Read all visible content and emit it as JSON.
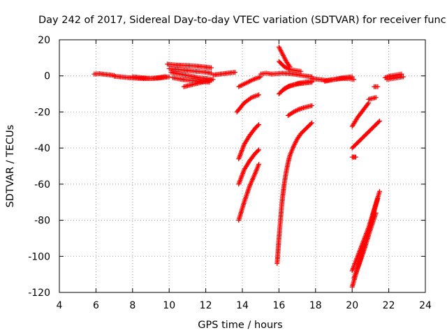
{
  "chart_data": {
    "type": "scatter",
    "title": "Day 242 of 2017, Sidereal Day-to-day VTEC variation (SDTVAR) for receiver func",
    "xlabel": "GPS time / hours",
    "ylabel": "SDTVAR / TECUs",
    "xlim": [
      4,
      24
    ],
    "ylim": [
      -120,
      20
    ],
    "xticks": [
      4,
      6,
      8,
      10,
      12,
      14,
      16,
      18,
      20,
      22,
      24
    ],
    "yticks": [
      -120,
      -100,
      -80,
      -60,
      -40,
      -20,
      0,
      20
    ],
    "grid": true,
    "marker": "+",
    "color": "#ff0000",
    "tracks": [
      {
        "name": "t01",
        "x": [
          5.9,
          6.2,
          6.5,
          6.8,
          7.0
        ],
        "y": [
          1.0,
          1.2,
          0.8,
          0.5,
          0.2
        ]
      },
      {
        "name": "t02",
        "x": [
          7.0,
          7.4,
          7.8,
          8.2,
          8.6,
          9.0,
          9.4,
          9.8
        ],
        "y": [
          -0.2,
          -0.6,
          -1.0,
          -1.3,
          -1.5,
          -1.4,
          -1.0,
          -0.4
        ]
      },
      {
        "name": "t03",
        "x": [
          8.0,
          8.5,
          9.0,
          9.5,
          10.0
        ],
        "y": [
          -0.5,
          -1.0,
          -1.5,
          -1.2,
          -0.5
        ]
      },
      {
        "name": "t04",
        "x": [
          9.9,
          10.4,
          10.9,
          11.4,
          11.9,
          12.3
        ],
        "y": [
          6.5,
          6.0,
          5.8,
          5.5,
          5.0,
          4.5
        ]
      },
      {
        "name": "t05",
        "x": [
          10.0,
          10.5,
          11.0,
          11.5,
          12.0,
          12.3
        ],
        "y": [
          4.0,
          3.5,
          3.0,
          2.5,
          2.0,
          1.5
        ]
      },
      {
        "name": "t06",
        "x": [
          10.1,
          10.6,
          11.1,
          11.6,
          12.1,
          12.4
        ],
        "y": [
          2.0,
          1.0,
          0.0,
          -1.0,
          -1.5,
          -2.0
        ]
      },
      {
        "name": "t07",
        "x": [
          10.2,
          10.7,
          11.2,
          11.7,
          12.2
        ],
        "y": [
          -1.0,
          -2.0,
          -2.5,
          -3.0,
          -3.5
        ]
      },
      {
        "name": "t08",
        "x": [
          10.8,
          11.2,
          11.6,
          12.0,
          12.3
        ],
        "y": [
          -6.0,
          -5.0,
          -4.0,
          -3.0,
          -2.5
        ]
      },
      {
        "name": "t09",
        "x": [
          12.4,
          12.8,
          13.2,
          13.6
        ],
        "y": [
          0.5,
          1.0,
          1.5,
          2.0
        ]
      },
      {
        "name": "t10",
        "x": [
          13.8,
          14.2,
          14.6,
          15.0
        ],
        "y": [
          -6.0,
          -4.0,
          -2.0,
          -0.5
        ]
      },
      {
        "name": "t11",
        "x": [
          13.7,
          14.1,
          14.5,
          14.9
        ],
        "y": [
          -20.0,
          -15.0,
          -12.0,
          -10.5
        ]
      },
      {
        "name": "t12",
        "x": [
          13.8,
          14.1,
          14.4,
          14.7,
          14.9
        ],
        "y": [
          -46.0,
          -38.0,
          -33.0,
          -29.0,
          -27.0
        ]
      },
      {
        "name": "t13",
        "x": [
          13.8,
          14.1,
          14.4,
          14.7,
          14.9
        ],
        "y": [
          -60.0,
          -52.0,
          -47.0,
          -43.0,
          -41.0
        ]
      },
      {
        "name": "t14",
        "x": [
          13.8,
          14.1,
          14.4,
          14.7,
          14.9
        ],
        "y": [
          -80.0,
          -70.0,
          -61.0,
          -54.0,
          -49.0
        ]
      },
      {
        "name": "t15",
        "x": [
          15.0,
          15.3,
          15.6
        ],
        "y": [
          1.0,
          1.5,
          1.0
        ]
      },
      {
        "name": "t16",
        "x": [
          15.6,
          15.9,
          16.2,
          16.5,
          16.8,
          17.1,
          17.4,
          17.8
        ],
        "y": [
          1.0,
          1.2,
          1.5,
          1.3,
          1.0,
          0.5,
          0.0,
          -0.5
        ]
      },
      {
        "name": "t17",
        "x": [
          16.0,
          16.2,
          16.4,
          16.6
        ],
        "y": [
          16.0,
          12.0,
          8.0,
          5.0
        ]
      },
      {
        "name": "t18",
        "x": [
          16.0,
          16.3,
          16.6,
          16.9,
          17.2
        ],
        "y": [
          8.0,
          5.0,
          3.5,
          3.0,
          2.5
        ]
      },
      {
        "name": "t19",
        "x": [
          16.0,
          16.3,
          16.6,
          17.0,
          17.4,
          17.8
        ],
        "y": [
          -10.0,
          -7.0,
          -5.5,
          -4.5,
          -4.0,
          -3.5
        ]
      },
      {
        "name": "t20",
        "x": [
          16.2,
          16.5,
          16.8,
          17.1,
          17.4,
          17.8
        ],
        "y": [
          -8.0,
          -6.0,
          -5.0,
          -4.0,
          -3.5,
          -3.0
        ]
      },
      {
        "name": "t21",
        "x": [
          16.5,
          16.8,
          17.1,
          17.4,
          17.8
        ],
        "y": [
          -22.0,
          -20.0,
          -18.5,
          -17.5,
          -16.5
        ]
      },
      {
        "name": "t22",
        "x": [
          15.9,
          15.95,
          16.0,
          16.05,
          16.1,
          16.15,
          16.2,
          16.25,
          16.3,
          16.4,
          16.5,
          16.6,
          16.8,
          17.0,
          17.2,
          17.5,
          17.8
        ],
        "y": [
          -104.0,
          -97.0,
          -90.0,
          -84.0,
          -78.0,
          -72.0,
          -67.0,
          -63.0,
          -59.0,
          -53.0,
          -48.0,
          -44.0,
          -39.0,
          -35.0,
          -32.0,
          -29.0,
          -26.0
        ]
      },
      {
        "name": "t23",
        "x": [
          17.8,
          18.2,
          18.6,
          19.0,
          19.4,
          19.8,
          20.1
        ],
        "y": [
          -1.5,
          -2.0,
          -2.5,
          -2.0,
          -1.5,
          -1.5,
          -2.0
        ]
      },
      {
        "name": "t24",
        "x": [
          18.5,
          19.0,
          19.5,
          20.0
        ],
        "y": [
          -3.0,
          -2.0,
          -1.0,
          -0.5
        ]
      },
      {
        "name": "t25",
        "x": [
          20.0,
          20.3,
          20.6,
          20.9
        ],
        "y": [
          -28.0,
          -23.0,
          -19.0,
          -15.0
        ]
      },
      {
        "name": "t26",
        "x": [
          20.0,
          20.4,
          20.8,
          21.2,
          21.5
        ],
        "y": [
          -40.0,
          -36.0,
          -32.0,
          -28.0,
          -25.0
        ]
      },
      {
        "name": "t27",
        "x": [
          20.0,
          20.1,
          20.2
        ],
        "y": [
          -45.0,
          -45.0,
          -45.0
        ]
      },
      {
        "name": "t28",
        "x": [
          20.9,
          21.1,
          21.3
        ],
        "y": [
          -13.0,
          -12.5,
          -12.0
        ]
      },
      {
        "name": "t29",
        "x": [
          21.2,
          21.4
        ],
        "y": [
          -6.0,
          -6.0
        ]
      },
      {
        "name": "t30",
        "x": [
          20.0,
          20.2,
          20.4,
          20.6,
          20.8,
          21.0,
          21.2,
          21.4
        ],
        "y": [
          -117.0,
          -110.0,
          -103.0,
          -97.0,
          -90.0,
          -83.0,
          -75.0,
          -68.0
        ]
      },
      {
        "name": "t31",
        "x": [
          20.0,
          20.3,
          20.6,
          20.9,
          21.2,
          21.5
        ],
        "y": [
          -108.0,
          -100.0,
          -92.0,
          -84.0,
          -74.0,
          -64.0
        ]
      },
      {
        "name": "t32",
        "x": [
          20.1,
          20.4,
          20.7,
          21.0,
          21.3
        ],
        "y": [
          -112.0,
          -104.0,
          -95.0,
          -85.0,
          -76.0
        ]
      },
      {
        "name": "t33",
        "x": [
          21.8,
          22.1,
          22.4,
          22.7
        ],
        "y": [
          -1.0,
          0.0,
          0.5,
          1.0
        ]
      },
      {
        "name": "t34",
        "x": [
          21.9,
          22.2,
          22.5,
          22.8
        ],
        "y": [
          -2.0,
          -1.5,
          -1.0,
          -0.5
        ]
      }
    ]
  }
}
